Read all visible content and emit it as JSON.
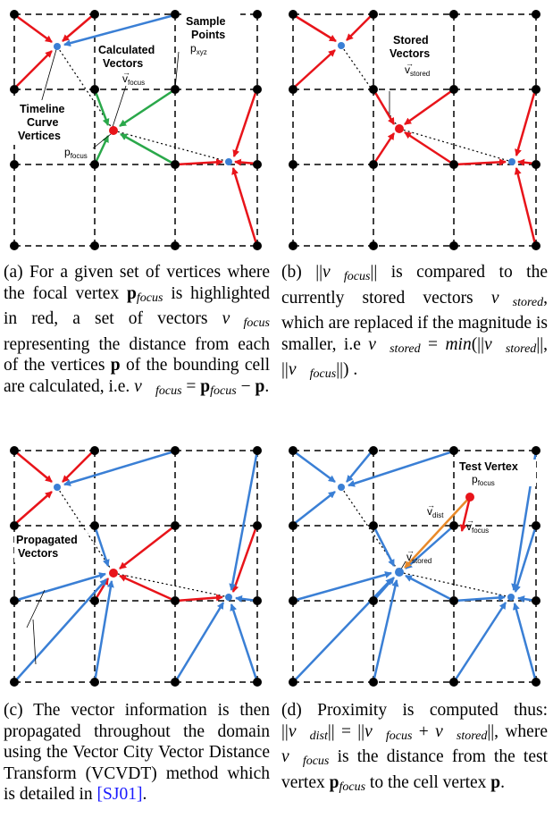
{
  "panels": {
    "a": {
      "labels": {
        "sample_points_line1": "Sample",
        "sample_points_line2": "Points",
        "p_xyz": "p",
        "p_xyz_sub": "xyz",
        "calc_line1": "Calculated",
        "calc_line2": "Vectors",
        "v_focus": "v",
        "v_focus_sub": "focus",
        "timeline_line1": "Timeline",
        "timeline_line2": "Curve",
        "timeline_line3": "Vertices",
        "p_focus": "p",
        "p_focus_sub": "focus"
      },
      "caption": {
        "prefix": "(a)",
        "text": "For a given set of vertices where the focal vertex p_focus is highlighted in red, a set of vectors v_focus representing the distance from each of the vertices p of the bounding cell are calculated, i.e. v_focus = p_focus − p."
      }
    },
    "b": {
      "labels": {
        "stored_line1": "Stored",
        "stored_line2": "Vectors",
        "v_stored": "v",
        "v_stored_sub": "stored"
      },
      "caption": {
        "prefix": "(b)",
        "text": "||v_focus|| is compared to the currently stored vectors v_stored, which are replaced if the magnitude is smaller, i.e v_stored = min(||v_stored||, ||v_focus||) ."
      }
    },
    "c": {
      "labels": {
        "propagated_line1": "Propagated",
        "propagated_line2": "Vectors"
      },
      "caption": {
        "prefix": "(c)",
        "text": "The vector information is then propagated throughout the domain using the Vector City Vector Distance Transform (VCVDT) method which is detailed in [SJ01].",
        "ref": "[SJ01]"
      }
    },
    "d": {
      "labels": {
        "test_vertex": "Test Vertex",
        "p_focus": "p",
        "p_focus_sub": "focus",
        "v_dist": "v",
        "v_dist_sub": "dist",
        "v_focus": "v",
        "v_focus_sub": "focus",
        "v_stored": "v",
        "v_stored_sub": "stored"
      },
      "caption": {
        "prefix": "(d)",
        "text": "Proximity is computed thus: ||v_dist|| = ||v_focus + v_stored||, where v_focus is the distance from the test vertex p_focus to the cell vertex p."
      }
    }
  },
  "colors": {
    "red": "#e8141a",
    "blue": "#3a7fd5",
    "green": "#2aa84a",
    "orange": "#e98a2a",
    "grid": "#000000",
    "link": "#1a1aff"
  }
}
